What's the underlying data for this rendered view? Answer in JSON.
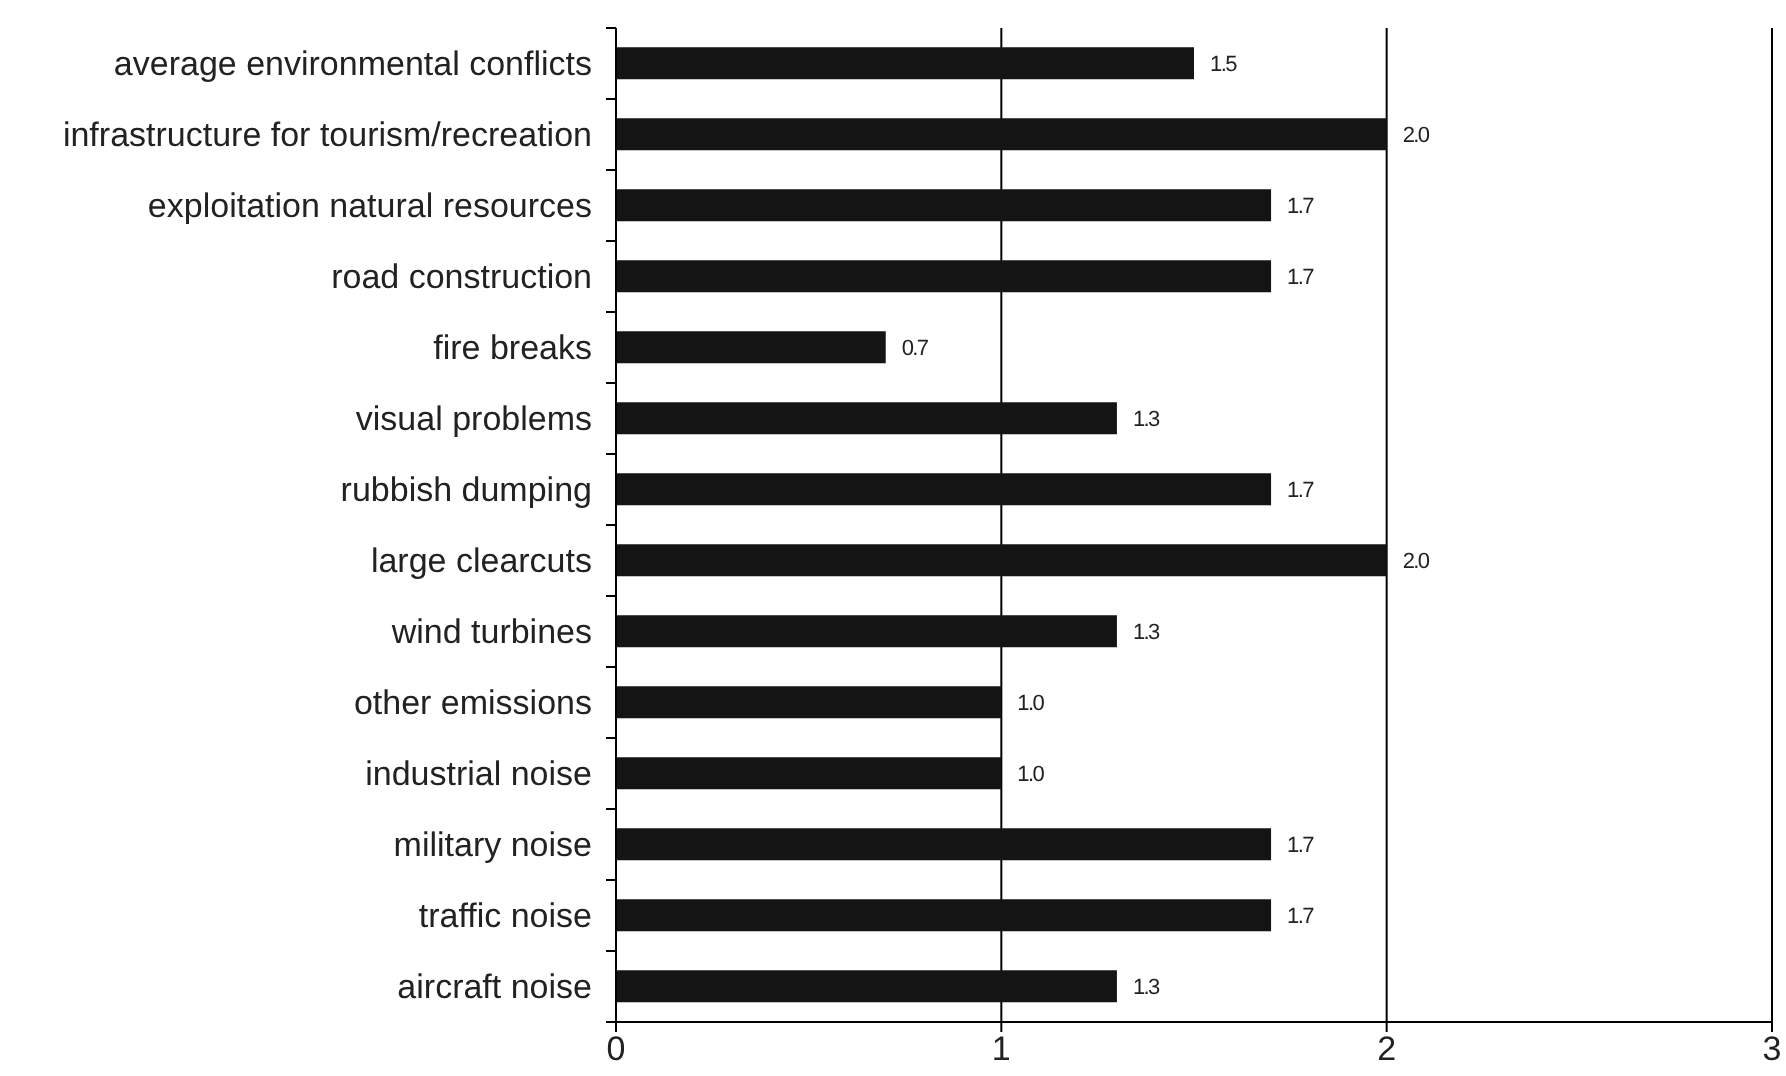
{
  "chart_data": {
    "type": "bar",
    "orientation": "horizontal",
    "categories": [
      "average environmental conflicts",
      "infrastructure for tourism/recreation",
      "exploitation natural resources",
      "road construction",
      "fire breaks",
      "visual problems",
      "rubbish dumping",
      "large clearcuts",
      "wind turbines",
      "other emissions",
      "industrial noise",
      "military noise",
      "traffic noise",
      "aircraft noise"
    ],
    "values": [
      1.5,
      2.0,
      1.7,
      1.7,
      0.7,
      1.3,
      1.7,
      2.0,
      1.3,
      1.0,
      1.0,
      1.7,
      1.7,
      1.3
    ],
    "value_labels": [
      "1.5",
      "2.0",
      "1.7",
      "1.7",
      "0.7",
      "1.3",
      "1.7",
      "2.0",
      "1.3",
      "1.0",
      "1.0",
      "1.7",
      "1.7",
      "1.3"
    ],
    "color": "#141414",
    "xlim": [
      0,
      3
    ],
    "xticks": [
      0,
      1,
      2,
      3
    ],
    "grid": "x"
  }
}
